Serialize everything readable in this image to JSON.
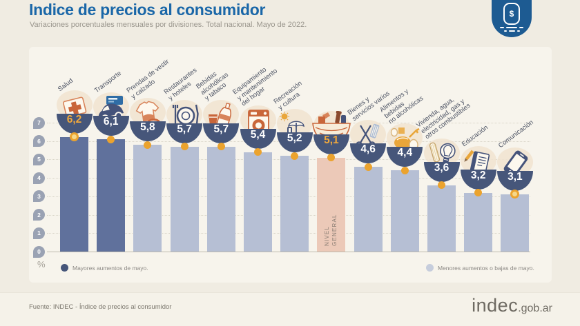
{
  "header": {
    "title": "Indice de precios al consumidor",
    "subtitle": "Variaciones porcentuales mensuales por divisiones. Total nacional. Mayo de 2022.",
    "badge_icon": "price-tag-dollar-badge"
  },
  "chart_data": {
    "type": "bar",
    "title": "Indice de precios al consumidor",
    "subtitle": "Variaciones porcentuales mensuales por divisiones. Total nacional. Mayo de 2022.",
    "ylabel": "%",
    "ylim": [
      0,
      7
    ],
    "yticks": [
      "0",
      "1",
      "2",
      "3",
      "4",
      "5",
      "6",
      "7"
    ],
    "grid": true,
    "legend_position": "bottom",
    "bars": [
      {
        "label": "Salud",
        "label_lines": [
          "Salud"
        ],
        "value": 6.2,
        "value_label": "6,2",
        "style": "dark",
        "icon": "first-aid-kit",
        "accent": true,
        "ring": true
      },
      {
        "label": "Transporte",
        "label_lines": [
          "Transporte"
        ],
        "value": 6.1,
        "value_label": "6,1",
        "style": "dark",
        "icon": "car"
      },
      {
        "label": "Prendas de vestir y calzado",
        "label_lines": [
          "Prendas de vestir",
          "y calzado"
        ],
        "value": 5.8,
        "value_label": "5,8",
        "style": "light",
        "icon": "clothing"
      },
      {
        "label": "Restaurantes y hoteles",
        "label_lines": [
          "Restaurantes",
          "y hoteles"
        ],
        "value": 5.7,
        "value_label": "5,7",
        "style": "light",
        "icon": "dining"
      },
      {
        "label": "Bebidas alcohólicas y tabaco",
        "label_lines": [
          "Bebidas",
          "alcohólicas",
          "y tabaco"
        ],
        "value": 5.7,
        "value_label": "5,7",
        "style": "light",
        "icon": "drinks"
      },
      {
        "label": "Equipamiento y mantenimiento del hogar",
        "label_lines": [
          "Equipamiento",
          "y mantenimiento",
          "del hogar"
        ],
        "value": 5.4,
        "value_label": "5,4",
        "style": "light",
        "icon": "washing-machine"
      },
      {
        "label": "Recreación y cultura",
        "label_lines": [
          "Recreación",
          "y cultura"
        ],
        "value": 5.2,
        "value_label": "5,2",
        "style": "light",
        "icon": "beach-umbrella"
      },
      {
        "label": "Nivel general",
        "label_lines": [],
        "inner_label_lines": [
          "NIVEL",
          "GENERAL"
        ],
        "value": 5.1,
        "value_label": "5,1",
        "style": "general",
        "icon": "shopping-basket",
        "accent": true
      },
      {
        "label": "Bienes y servicios varios",
        "label_lines": [
          "Bienes y",
          "servicios varios"
        ],
        "value": 4.6,
        "value_label": "4,6",
        "style": "light",
        "icon": "scissors-comb"
      },
      {
        "label": "Alimentos y bebidas no alcohólicas",
        "label_lines": [
          "Alimentos y",
          "bebidas",
          "no alcohólicas"
        ],
        "value": 4.4,
        "value_label": "4,4",
        "style": "light",
        "icon": "food"
      },
      {
        "label": "Vivienda, agua, electricidad, gas y otros combustibles",
        "label_lines": [
          "Vivienda, agua,",
          "electricidad, gas y",
          "otros combustibles"
        ],
        "value": 3.6,
        "value_label": "3,6",
        "style": "light",
        "icon": "light-bulb"
      },
      {
        "label": "Educación",
        "label_lines": [
          "Educación"
        ],
        "value": 3.2,
        "value_label": "3,2",
        "style": "light",
        "icon": "notebook"
      },
      {
        "label": "Comunicación",
        "label_lines": [
          "Comunicación"
        ],
        "value": 3.1,
        "value_label": "3,1",
        "style": "light",
        "icon": "smartphone",
        "ring": true
      }
    ],
    "legend": [
      {
        "label": "Mayores aumentos de mayo.",
        "style": "dark"
      },
      {
        "label": "Menores aumentos o bajas de mayo.",
        "style": "light"
      }
    ]
  },
  "footer": {
    "source": "Fuente: INDEC - Índice de precios al consumidor",
    "brand": "indec",
    "brand_suffix": ".gob.ar"
  },
  "colors": {
    "background": "#f0ece2",
    "footer_strip": "#f5f2e9",
    "panel": "#f7f4ec",
    "title": "#1a67a8",
    "subtitle": "#9a968d",
    "badge": "#1d5b92",
    "bar_dark": "#60719c",
    "bar_light": "#b6bfd4",
    "bar_general": "#ecc9b8",
    "bowl": "#46567a",
    "dot": "#eba32e",
    "accent": "#f0a83d",
    "grid": "#d8d4c7",
    "tick": "#9aa2b3",
    "label": "#4b5263",
    "inner": "#8a7d73",
    "legend_text": "#8b8884",
    "footer_text": "#7b776d",
    "brand": "#6e6a62"
  }
}
